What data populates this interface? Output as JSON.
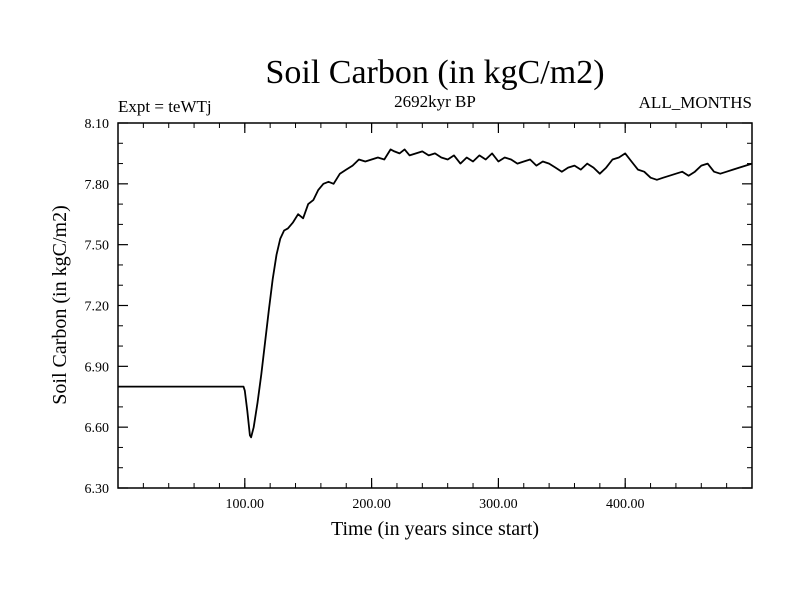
{
  "chart_data": {
    "type": "line",
    "title": "Soil Carbon (in kgC/m2)",
    "subtitle_left": "Expt = teWTj",
    "subtitle_center": "2692kyr BP",
    "subtitle_right": "ALL_MONTHS",
    "xlabel": "Time (in years since start)",
    "ylabel": "Soil Carbon (in kgC/m2)",
    "xlim": [
      0,
      500
    ],
    "ylim": [
      6.3,
      8.1
    ],
    "xticks": [
      100,
      200,
      300,
      400
    ],
    "xtick_labels": [
      "100.00",
      "200.00",
      "300.00",
      "400.00"
    ],
    "yticks": [
      6.3,
      6.6,
      6.9,
      7.2,
      7.5,
      7.8,
      8.1
    ],
    "ytick_labels": [
      "6.30",
      "6.60",
      "6.90",
      "7.20",
      "7.50",
      "7.80",
      "8.10"
    ],
    "line_color": "#000000",
    "series": [
      {
        "name": "Soil Carbon",
        "x": [
          0,
          99,
          100,
          102,
          104,
          105,
          107,
          110,
          113,
          116,
          119,
          122,
          125,
          128,
          131,
          134,
          138,
          142,
          146,
          150,
          154,
          158,
          162,
          166,
          170,
          175,
          180,
          185,
          190,
          195,
          200,
          205,
          210,
          215,
          218,
          222,
          226,
          230,
          235,
          240,
          245,
          250,
          255,
          260,
          265,
          270,
          275,
          280,
          285,
          290,
          295,
          300,
          305,
          310,
          315,
          320,
          325,
          330,
          335,
          340,
          345,
          350,
          355,
          360,
          365,
          370,
          375,
          380,
          385,
          390,
          395,
          400,
          405,
          410,
          415,
          420,
          425,
          430,
          435,
          440,
          445,
          450,
          455,
          460,
          465,
          470,
          475,
          480,
          485,
          490,
          495,
          500
        ],
        "y": [
          6.8,
          6.8,
          6.78,
          6.68,
          6.56,
          6.55,
          6.6,
          6.72,
          6.86,
          7.02,
          7.18,
          7.33,
          7.45,
          7.53,
          7.57,
          7.58,
          7.61,
          7.65,
          7.63,
          7.7,
          7.72,
          7.77,
          7.8,
          7.81,
          7.8,
          7.85,
          7.87,
          7.89,
          7.92,
          7.91,
          7.92,
          7.93,
          7.92,
          7.97,
          7.96,
          7.95,
          7.97,
          7.94,
          7.95,
          7.96,
          7.94,
          7.95,
          7.93,
          7.92,
          7.94,
          7.9,
          7.93,
          7.91,
          7.94,
          7.92,
          7.95,
          7.91,
          7.93,
          7.92,
          7.9,
          7.91,
          7.92,
          7.89,
          7.91,
          7.9,
          7.88,
          7.86,
          7.88,
          7.89,
          7.87,
          7.9,
          7.88,
          7.85,
          7.88,
          7.92,
          7.93,
          7.95,
          7.91,
          7.87,
          7.86,
          7.83,
          7.82,
          7.83,
          7.84,
          7.85,
          7.86,
          7.84,
          7.86,
          7.89,
          7.9,
          7.86,
          7.85,
          7.86,
          7.87,
          7.88,
          7.89,
          7.9
        ]
      }
    ]
  }
}
